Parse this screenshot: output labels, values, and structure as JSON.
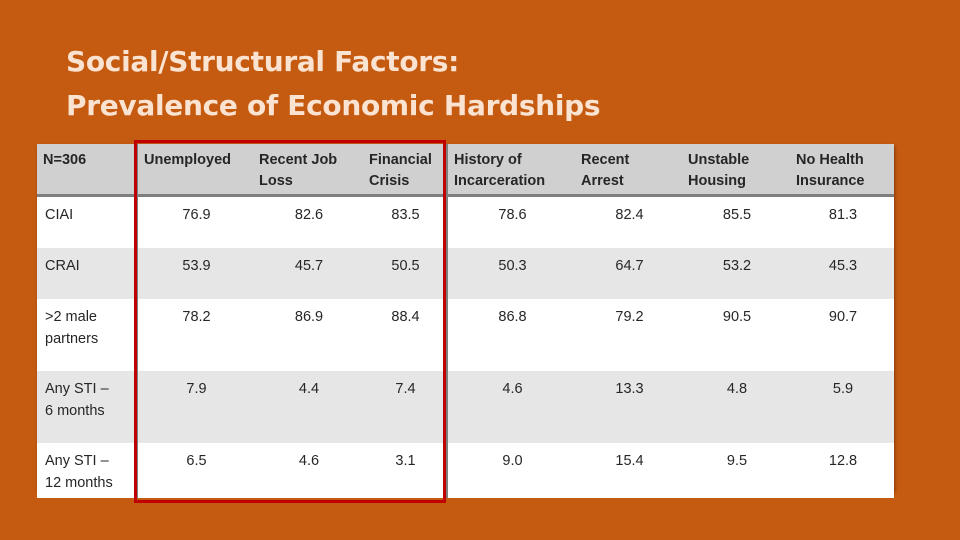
{
  "title": {
    "line1": "Social/Structural Factors:",
    "line2": "Prevalence of Economic Hardships"
  },
  "table": {
    "headers": [
      [
        "N=306"
      ],
      [
        "Unemployed"
      ],
      [
        "Recent Job",
        "Loss"
      ],
      [
        "Financial",
        "Crisis"
      ],
      [
        "History of",
        "Incarceration"
      ],
      [
        "Recent",
        "Arrest"
      ],
      [
        "Unstable",
        "Housing"
      ],
      [
        "No Health",
        "Insurance"
      ]
    ],
    "rows": [
      {
        "label": [
          "CIAI"
        ],
        "values": [
          "76.9",
          "82.6",
          "83.5",
          "78.6",
          "82.4",
          "85.5",
          "81.3"
        ]
      },
      {
        "label": [
          "CRAI"
        ],
        "values": [
          "53.9",
          "45.7",
          "50.5",
          "50.3",
          "64.7",
          "53.2",
          "45.3"
        ]
      },
      {
        "label": [
          ">2 male",
          "partners"
        ],
        "values": [
          "78.2",
          "86.9",
          "88.4",
          "86.8",
          "79.2",
          "90.5",
          "90.7"
        ]
      },
      {
        "label": [
          "Any STI –",
          "6 months"
        ],
        "values": [
          "7.9",
          "4.4",
          "7.4",
          "4.6",
          "13.3",
          "4.8",
          "5.9"
        ]
      },
      {
        "label": [
          "Any STI –",
          "12 months"
        ],
        "values": [
          "6.5",
          "4.6",
          "3.1",
          "9.0",
          "15.4",
          "9.5",
          "12.8"
        ]
      }
    ]
  },
  "colors": {
    "background": "#c55a11",
    "title": "#fbe3d2",
    "highlight": "#c00000"
  }
}
